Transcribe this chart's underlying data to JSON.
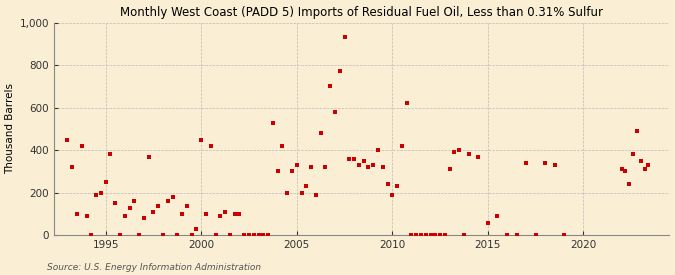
{
  "title": "Monthly West Coast (PADD 5) Imports of Residual Fuel Oil, Less than 0.31% Sulfur",
  "ylabel": "Thousand Barrels",
  "source": "Source: U.S. Energy Information Administration",
  "background_color": "#faefd4",
  "plot_bg_color": "#faefd4",
  "marker_color": "#cc0000",
  "grid_color": "#bbbbbb",
  "ylim": [
    0,
    1000
  ],
  "yticks": [
    0,
    200,
    400,
    600,
    800,
    1000
  ],
  "ytick_labels": [
    "0",
    "200",
    "400",
    "600",
    "800",
    "1,000"
  ],
  "xticks": [
    1995,
    2000,
    2005,
    2010,
    2015,
    2020
  ],
  "xlim": [
    1992.3,
    2024.5
  ],
  "data_points": [
    [
      1993.0,
      450
    ],
    [
      1993.25,
      320
    ],
    [
      1993.5,
      100
    ],
    [
      1993.75,
      420
    ],
    [
      1994.0,
      90
    ],
    [
      1994.25,
      0
    ],
    [
      1994.5,
      190
    ],
    [
      1994.75,
      200
    ],
    [
      1995.0,
      250
    ],
    [
      1995.25,
      380
    ],
    [
      1995.5,
      150
    ],
    [
      1995.75,
      0
    ],
    [
      1996.0,
      90
    ],
    [
      1996.25,
      130
    ],
    [
      1996.5,
      160
    ],
    [
      1996.75,
      0
    ],
    [
      1997.0,
      80
    ],
    [
      1997.25,
      370
    ],
    [
      1997.5,
      110
    ],
    [
      1997.75,
      140
    ],
    [
      1998.0,
      0
    ],
    [
      1998.25,
      160
    ],
    [
      1998.5,
      180
    ],
    [
      1998.75,
      0
    ],
    [
      1999.0,
      100
    ],
    [
      1999.25,
      140
    ],
    [
      1999.5,
      0
    ],
    [
      1999.75,
      30
    ],
    [
      2000.0,
      450
    ],
    [
      2000.25,
      100
    ],
    [
      2000.5,
      420
    ],
    [
      2000.75,
      0
    ],
    [
      2001.0,
      90
    ],
    [
      2001.25,
      110
    ],
    [
      2001.5,
      0
    ],
    [
      2001.75,
      100
    ],
    [
      2002.0,
      100
    ],
    [
      2002.25,
      0
    ],
    [
      2002.5,
      0
    ],
    [
      2002.75,
      0
    ],
    [
      2003.0,
      0
    ],
    [
      2003.25,
      0
    ],
    [
      2003.5,
      0
    ],
    [
      2003.75,
      530
    ],
    [
      2004.0,
      300
    ],
    [
      2004.25,
      420
    ],
    [
      2004.5,
      200
    ],
    [
      2004.75,
      300
    ],
    [
      2005.0,
      330
    ],
    [
      2005.25,
      200
    ],
    [
      2005.5,
      230
    ],
    [
      2005.75,
      320
    ],
    [
      2006.0,
      190
    ],
    [
      2006.25,
      480
    ],
    [
      2006.5,
      320
    ],
    [
      2006.75,
      700
    ],
    [
      2007.0,
      580
    ],
    [
      2007.25,
      770
    ],
    [
      2007.5,
      930
    ],
    [
      2007.75,
      360
    ],
    [
      2008.0,
      360
    ],
    [
      2008.25,
      330
    ],
    [
      2008.5,
      350
    ],
    [
      2008.75,
      320
    ],
    [
      2009.0,
      330
    ],
    [
      2009.25,
      400
    ],
    [
      2009.5,
      320
    ],
    [
      2009.75,
      240
    ],
    [
      2010.0,
      190
    ],
    [
      2010.25,
      230
    ],
    [
      2010.5,
      420
    ],
    [
      2010.75,
      620
    ],
    [
      2011.0,
      0
    ],
    [
      2011.25,
      0
    ],
    [
      2011.5,
      0
    ],
    [
      2011.75,
      0
    ],
    [
      2012.0,
      0
    ],
    [
      2012.25,
      0
    ],
    [
      2012.5,
      0
    ],
    [
      2012.75,
      0
    ],
    [
      2013.0,
      310
    ],
    [
      2013.25,
      390
    ],
    [
      2013.5,
      400
    ],
    [
      2013.75,
      0
    ],
    [
      2014.0,
      380
    ],
    [
      2014.5,
      370
    ],
    [
      2015.0,
      60
    ],
    [
      2015.5,
      90
    ],
    [
      2016.0,
      0
    ],
    [
      2016.5,
      0
    ],
    [
      2017.0,
      340
    ],
    [
      2017.5,
      0
    ],
    [
      2018.0,
      340
    ],
    [
      2018.5,
      330
    ],
    [
      2019.0,
      0
    ],
    [
      2022.0,
      310
    ],
    [
      2022.2,
      300
    ],
    [
      2022.4,
      240
    ],
    [
      2022.6,
      380
    ],
    [
      2022.8,
      490
    ],
    [
      2023.0,
      350
    ],
    [
      2023.2,
      310
    ],
    [
      2023.4,
      330
    ]
  ]
}
